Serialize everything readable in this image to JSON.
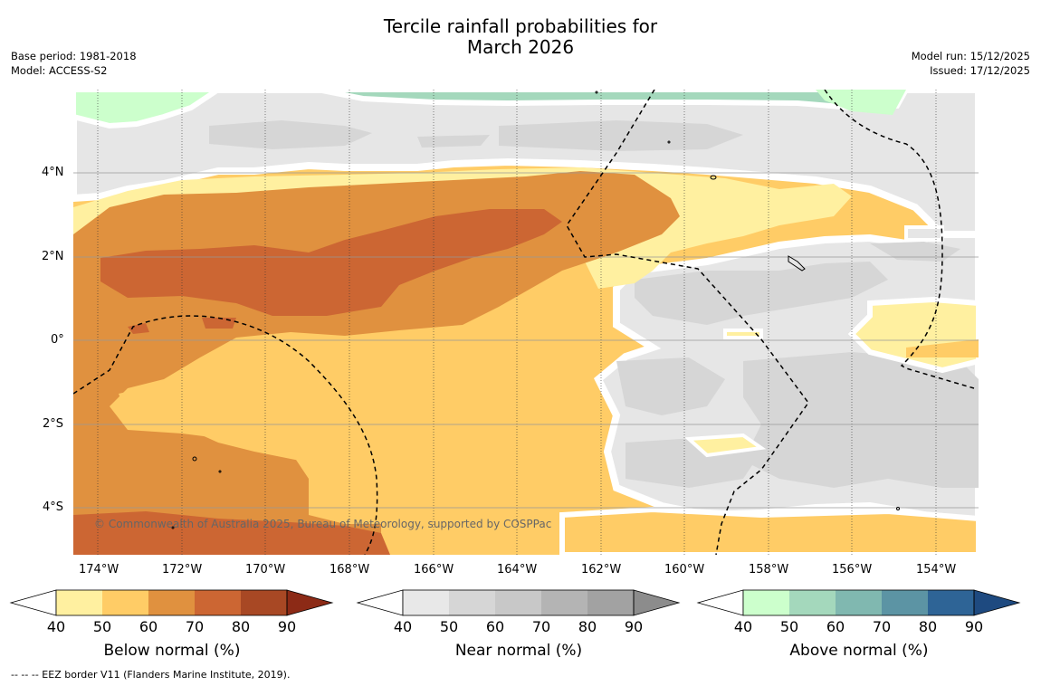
{
  "title": {
    "line1": "Tercile rainfall probabilities for",
    "line2": "March 2026"
  },
  "meta": {
    "base_period": "Base period: 1981-2018",
    "model": "Model: ACCESS-S2",
    "model_run": "Model run: 15/12/2025",
    "issued": "Issued: 17/12/2025"
  },
  "axes": {
    "x_ticks": [
      "174°W",
      "172°W",
      "170°W",
      "168°W",
      "166°W",
      "164°W",
      "162°W",
      "160°W",
      "158°W",
      "156°W",
      "154°W"
    ],
    "y_ticks": [
      "4°N",
      "2°N",
      "0°",
      "2°S",
      "4°S"
    ]
  },
  "copyright": "© Commonwealth of Australia 2025, Bureau of Meteorology, supported by COSPPac",
  "colorbars": [
    {
      "label": "Below normal (%)",
      "colors": [
        "#fff0a0",
        "#ffcc66",
        "#e0913f",
        "#cc6633",
        "#a84824",
        "#8c2a16"
      ],
      "ticks": [
        "40",
        "50",
        "60",
        "70",
        "80",
        "90"
      ]
    },
    {
      "label": "Near normal (%)",
      "colors": [
        "#e8e8e8",
        "#d6d6d6",
        "#c8c8c8",
        "#b4b4b4",
        "#a2a2a2",
        "#8c8c8c"
      ],
      "ticks": [
        "40",
        "50",
        "60",
        "70",
        "80",
        "90"
      ]
    },
    {
      "label": "Above normal (%)",
      "colors": [
        "#ccffcc",
        "#a4d8bc",
        "#80b8b0",
        "#5c94a4",
        "#2e6496",
        "#1e4a80"
      ],
      "ticks": [
        "40",
        "50",
        "60",
        "70",
        "80",
        "90"
      ]
    }
  ],
  "footer": "--  --  -- EEZ border V11 (Flanders Marine Institute, 2019)."
}
